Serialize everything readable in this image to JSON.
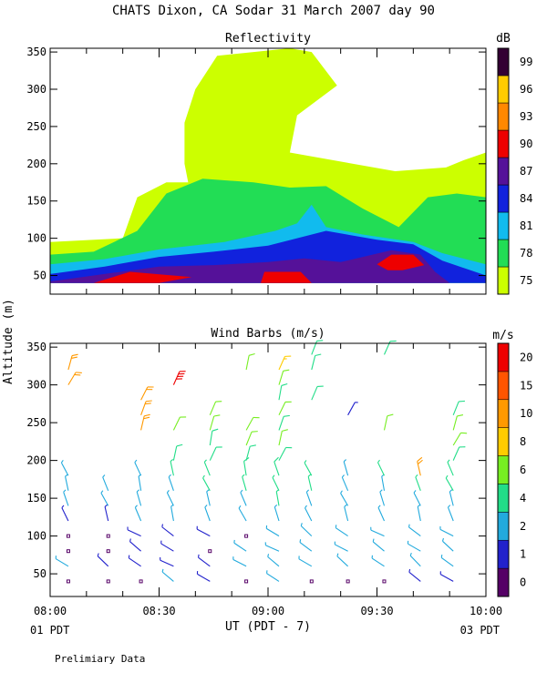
{
  "title": "CHATS Dixon, CA  Sodar  31 March 2007  day  90",
  "ylabel": "Altitude (m)",
  "xlabel": "UT  (PDT - 7)",
  "x_ticks": [
    "08:00",
    "08:30",
    "09:00",
    "09:30",
    "10:00"
  ],
  "x_corner_left": "01 PDT",
  "x_corner_right": "03 PDT",
  "footer": "Prelimiary Data",
  "chart_data": [
    {
      "type": "heatmap",
      "title": "Reflectivity",
      "units_label": "dB",
      "x_range": [
        "08:00",
        "10:00"
      ],
      "ylim": [
        25,
        355
      ],
      "y_ticks": [
        50,
        100,
        150,
        200,
        250,
        300,
        350
      ],
      "colorbar_levels": [
        75,
        78,
        81,
        84,
        87,
        90,
        93,
        96,
        99
      ],
      "colorbar_colors": [
        "#ccff00",
        "#22dd55",
        "#11bbee",
        "#1122dd",
        "#551199",
        "#ee0000",
        "#ff8800",
        "#ffcc00",
        "#330033"
      ],
      "contour_regions": [
        {
          "level": 75,
          "points": [
            [
              "08:00",
              95
            ],
            [
              "08:20",
              100
            ],
            [
              "08:24",
              155
            ],
            [
              "08:32",
              175
            ],
            [
              "08:38",
              175
            ],
            [
              "08:37",
              200
            ],
            [
              "08:37",
              255
            ],
            [
              "08:40",
              300
            ],
            [
              "08:46",
              345
            ],
            [
              "09:06",
              355
            ],
            [
              "09:12",
              350
            ],
            [
              "09:19",
              305
            ],
            [
              "09:08",
              265
            ],
            [
              "09:06",
              215
            ],
            [
              "09:35",
              190
            ],
            [
              "09:49",
              195
            ],
            [
              "09:54",
              205
            ],
            [
              "10:00",
              215
            ],
            [
              "10:00",
              40
            ],
            [
              "08:00",
              40
            ]
          ]
        },
        {
          "level": 78,
          "points": [
            [
              "08:00",
              78
            ],
            [
              "08:12",
              82
            ],
            [
              "08:24",
              110
            ],
            [
              "08:32",
              160
            ],
            [
              "08:42",
              180
            ],
            [
              "08:56",
              175
            ],
            [
              "09:06",
              168
            ],
            [
              "09:16",
              170
            ],
            [
              "09:26",
              140
            ],
            [
              "09:36",
              115
            ],
            [
              "09:44",
              155
            ],
            [
              "09:52",
              160
            ],
            [
              "10:00",
              155
            ],
            [
              "10:00",
              40
            ],
            [
              "08:00",
              40
            ]
          ]
        },
        {
          "level": 81,
          "points": [
            [
              "08:00",
              65
            ],
            [
              "08:15",
              72
            ],
            [
              "08:30",
              85
            ],
            [
              "08:48",
              95
            ],
            [
              "09:02",
              110
            ],
            [
              "09:08",
              120
            ],
            [
              "09:12",
              145
            ],
            [
              "09:16",
              115
            ],
            [
              "09:26",
              105
            ],
            [
              "09:40",
              95
            ],
            [
              "09:48",
              80
            ],
            [
              "10:00",
              65
            ],
            [
              "10:00",
              40
            ],
            [
              "08:00",
              40
            ]
          ]
        },
        {
          "level": 84,
          "points": [
            [
              "08:00",
              52
            ],
            [
              "08:15",
              62
            ],
            [
              "08:30",
              75
            ],
            [
              "08:45",
              82
            ],
            [
              "09:00",
              90
            ],
            [
              "09:08",
              100
            ],
            [
              "09:16",
              110
            ],
            [
              "09:30",
              98
            ],
            [
              "09:40",
              92
            ],
            [
              "09:48",
              70
            ],
            [
              "10:00",
              50
            ],
            [
              "10:00",
              40
            ],
            [
              "08:00",
              40
            ]
          ]
        },
        {
          "level": 87,
          "points": [
            [
              "08:00",
              42
            ],
            [
              "08:12",
              50
            ],
            [
              "08:30",
              62
            ],
            [
              "08:45",
              64
            ],
            [
              "09:00",
              68
            ],
            [
              "09:10",
              73
            ],
            [
              "09:20",
              68
            ],
            [
              "09:34",
              84
            ],
            [
              "09:42",
              78
            ],
            [
              "09:46",
              55
            ],
            [
              "09:50",
              40
            ],
            [
              "08:00",
              40
            ]
          ]
        },
        {
          "level": 90,
          "points": [
            [
              "08:12",
              40
            ],
            [
              "08:22",
              55
            ],
            [
              "08:39",
              48
            ],
            [
              "08:30",
              40
            ]
          ]
        },
        {
          "level": 90,
          "points": [
            [
              "08:58",
              40
            ],
            [
              "08:59",
              55
            ],
            [
              "09:09",
              55
            ],
            [
              "09:12",
              40
            ]
          ]
        },
        {
          "level": 90,
          "points": [
            [
              "09:30",
              65
            ],
            [
              "09:34",
              78
            ],
            [
              "09:40",
              78
            ],
            [
              "09:43",
              64
            ],
            [
              "09:37",
              57
            ],
            [
              "09:33",
              57
            ]
          ]
        }
      ]
    },
    {
      "type": "scatter",
      "title": "Wind Barbs (m/s)",
      "units_label": "m/s",
      "x_range": [
        "08:00",
        "10:00"
      ],
      "ylim": [
        20,
        355
      ],
      "y_ticks": [
        50,
        100,
        150,
        200,
        250,
        300,
        350
      ],
      "colorbar_levels": [
        0,
        1,
        2,
        4,
        6,
        8,
        10,
        15,
        20
      ],
      "colorbar_colors": [
        "#550066",
        "#2222cc",
        "#22aadd",
        "#22dd88",
        "#77ee22",
        "#ffcc00",
        "#ff9900",
        "#ff5500",
        "#ee0000"
      ],
      "x_times": [
        "08:05",
        "08:16",
        "08:25",
        "08:34",
        "08:44",
        "08:54",
        "09:03",
        "09:12",
        "09:22",
        "09:32",
        "09:42",
        "09:51"
      ],
      "levels": [
        40,
        60,
        80,
        100,
        120,
        140,
        160,
        180,
        200,
        220,
        240,
        260,
        280,
        300,
        320,
        340
      ],
      "speeds_by_level": {
        "40": [
          0,
          0,
          0,
          2,
          1,
          0,
          2,
          0,
          0,
          0,
          1,
          1
        ],
        "60": [
          3,
          1,
          1,
          1,
          1,
          2,
          2,
          3,
          2,
          3,
          2,
          3
        ],
        "80": [
          0,
          0,
          1,
          1,
          0,
          3,
          3,
          3,
          2,
          3,
          3,
          2
        ],
        "100": [
          0,
          0,
          1,
          1,
          1,
          0,
          2,
          3,
          2,
          2,
          2,
          3
        ],
        "120": [
          1,
          1,
          2,
          2,
          2,
          3,
          3,
          3,
          3,
          3,
          2,
          3
        ],
        "140": [
          2,
          2,
          2,
          3,
          3,
          3,
          4,
          3,
          2,
          3,
          3,
          3
        ],
        "160": [
          2,
          2,
          3,
          3,
          4,
          4,
          4,
          4,
          3,
          3,
          4,
          4
        ],
        "180": [
          3,
          null,
          3,
          4,
          4,
          5,
          5,
          4,
          3,
          4,
          10,
          4
        ],
        "200": [
          null,
          null,
          null,
          5,
          5,
          5,
          5,
          null,
          null,
          null,
          null,
          5
        ],
        "220": [
          null,
          null,
          null,
          null,
          5,
          6,
          6,
          null,
          null,
          null,
          null,
          6
        ],
        "240": [
          null,
          null,
          12,
          6,
          6,
          6,
          5,
          null,
          null,
          6,
          null,
          6
        ],
        "260": [
          null,
          null,
          12,
          null,
          6,
          null,
          6,
          null,
          1,
          null,
          null,
          5
        ],
        "280": [
          null,
          null,
          12,
          null,
          null,
          null,
          5,
          5,
          null,
          null,
          null,
          null
        ],
        "300": [
          10,
          null,
          null,
          20,
          null,
          null,
          6,
          null,
          null,
          null,
          null,
          null
        ],
        "320": [
          10,
          null,
          null,
          null,
          null,
          6,
          8,
          5,
          null,
          null,
          null,
          null
        ],
        "340": [
          null,
          null,
          null,
          null,
          null,
          null,
          null,
          5,
          null,
          5,
          null,
          null
        ]
      }
    }
  ]
}
